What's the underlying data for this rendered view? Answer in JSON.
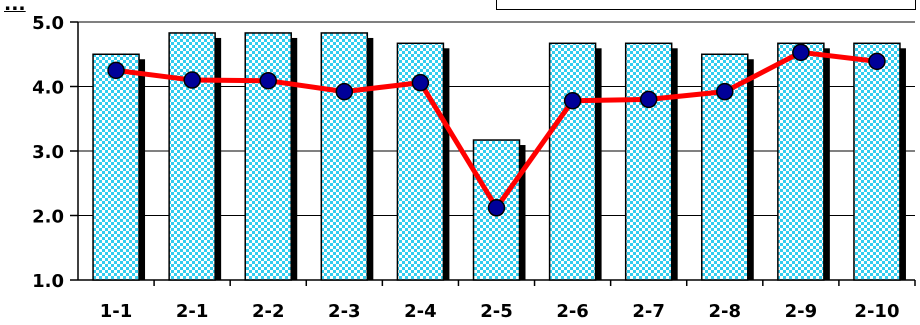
{
  "page": {
    "title": "..."
  },
  "chart_data": {
    "type": "bar",
    "categories": [
      "1-1",
      "2-1",
      "2-2",
      "2-3",
      "2-4",
      "2-5",
      "2-6",
      "2-7",
      "2-8",
      "2-9",
      "2-10"
    ],
    "series": [
      {
        "type": "bar",
        "values": [
          4.5,
          4.83,
          4.83,
          4.83,
          4.67,
          3.17,
          4.67,
          4.67,
          4.5,
          4.67,
          4.67
        ]
      },
      {
        "type": "line",
        "values": [
          4.25,
          4.1,
          4.09,
          3.92,
          4.06,
          2.12,
          3.78,
          3.8,
          3.92,
          4.53,
          4.39
        ]
      }
    ],
    "ylim": [
      1.0,
      5.0
    ],
    "yticks": [
      "1.0",
      "2.0",
      "3.0",
      "4.0",
      "5.0"
    ],
    "grid": true,
    "colors": {
      "bar_fill": "#33ccee",
      "bar_check": "#ffffff",
      "bar_shadow": "#000000",
      "line": "#ff0000",
      "marker": "#000099"
    },
    "legend": "top-right box"
  }
}
